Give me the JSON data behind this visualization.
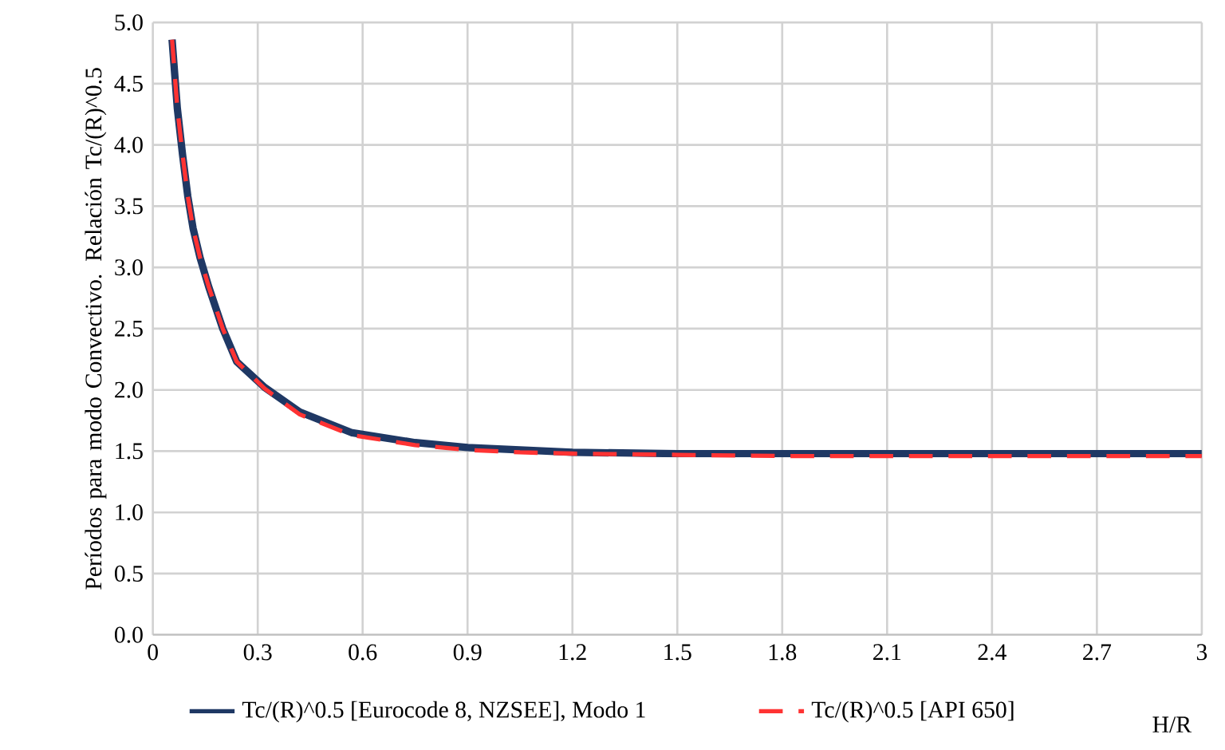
{
  "chart_data": {
    "type": "line",
    "ylabel": "Períodos para modo Convectivo. Relación Tc/(R)^0.5",
    "xlabel": "H/R",
    "xlim": [
      0,
      3
    ],
    "xticks": [
      0,
      0.3,
      0.6,
      0.9,
      1.2,
      1.5,
      1.8,
      2.1,
      2.4,
      2.7,
      3
    ],
    "ylim": [
      0,
      5
    ],
    "yticks": [
      {
        "value": 0,
        "label": "0.0"
      },
      {
        "value": 0.5,
        "label": "0.5"
      },
      {
        "value": 1,
        "label": "1.0"
      },
      {
        "value": 1.5,
        "label": "1.5"
      },
      {
        "value": 2,
        "label": "2.0"
      },
      {
        "value": 2.5,
        "label": "2.5"
      },
      {
        "value": 3,
        "label": "3.0"
      },
      {
        "value": 3.5,
        "label": "3.5"
      },
      {
        "value": 4,
        "label": "4.0"
      },
      {
        "value": 4.5,
        "label": "4.5"
      },
      {
        "value": 5,
        "label": "5.0"
      }
    ],
    "grid": true,
    "legend": "bottom",
    "series": [
      {
        "name": "Tc/(R)^0.5 [Eurocode 8, NZSEE], Modo 1",
        "color": "#1f3864",
        "line_style": "solid",
        "x": [
          0.055,
          0.07,
          0.085,
          0.1,
          0.115,
          0.135,
          0.16,
          0.2,
          0.24,
          0.32,
          0.42,
          0.57,
          0.75,
          0.9,
          1.05,
          1.2,
          1.5,
          1.8,
          2.1,
          2.4,
          2.7,
          3
        ],
        "values": [
          4.86,
          4.3,
          3.92,
          3.58,
          3.32,
          3.08,
          2.84,
          2.5,
          2.23,
          2.02,
          1.82,
          1.65,
          1.57,
          1.53,
          1.51,
          1.49,
          1.48,
          1.48,
          1.48,
          1.48,
          1.48,
          1.48
        ]
      },
      {
        "name": "Tc/(R)^0.5 [API 650]",
        "color": "#ff3333",
        "line_style": "dashed",
        "x": [
          0.055,
          0.07,
          0.085,
          0.1,
          0.115,
          0.135,
          0.16,
          0.2,
          0.24,
          0.32,
          0.42,
          0.57,
          0.75,
          0.9,
          1.05,
          1.2,
          1.5,
          1.8,
          2.1,
          2.4,
          2.7,
          3
        ],
        "values": [
          4.86,
          4.3,
          3.92,
          3.58,
          3.32,
          3.08,
          2.84,
          2.5,
          2.23,
          2.01,
          1.8,
          1.63,
          1.55,
          1.51,
          1.49,
          1.48,
          1.47,
          1.46,
          1.46,
          1.46,
          1.46,
          1.46
        ]
      }
    ]
  }
}
